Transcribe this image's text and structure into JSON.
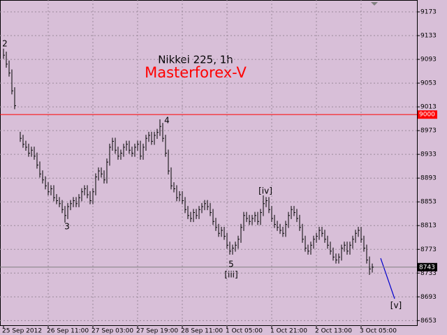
{
  "chart_data": {
    "type": "ohlc",
    "title": "Nikkei 225, 1h",
    "subtitle": "Masterforex-V",
    "categories": [
      "25 Sep 2012",
      null,
      null,
      null,
      null,
      null,
      null,
      null,
      null,
      null,
      null,
      null,
      null,
      null,
      null,
      null,
      "26 Sep 11:00",
      null,
      null,
      null,
      null,
      null,
      null,
      null,
      null,
      null,
      null,
      null,
      null,
      null,
      null,
      null,
      "27 Sep 03:00",
      null,
      null,
      null,
      null,
      null,
      null,
      null,
      null,
      null,
      null,
      null,
      null,
      null,
      null,
      null,
      "27 Sep 19:00",
      null,
      null,
      null,
      null,
      null,
      null,
      null,
      null,
      null,
      null,
      null,
      null,
      null,
      null,
      null,
      "28 Sep 11:00",
      null,
      null,
      null,
      null,
      null,
      null,
      null,
      null,
      null,
      null,
      null,
      null,
      null,
      null,
      null,
      "1 Oct 05:00",
      null,
      null,
      null,
      null,
      null,
      null,
      null,
      null,
      null,
      null,
      null,
      null,
      null,
      null,
      null,
      "1 Oct 21:00",
      null,
      null,
      null,
      null,
      null,
      null,
      null,
      null,
      null,
      null,
      null,
      null,
      null,
      null,
      null,
      "2 Oct 13:00",
      null,
      null,
      null,
      null,
      null,
      null,
      null,
      null,
      null,
      null,
      null,
      null,
      null,
      null,
      null,
      "3 Oct 05:00",
      null,
      null,
      null,
      null
    ],
    "high": [
      9111,
      9106,
      9091,
      9076,
      9046,
      null,
      8971,
      8966,
      8956,
      8951,
      8946,
      8946,
      8936,
      8921,
      8906,
      8896,
      8886,
      8881,
      8881,
      8866,
      8861,
      8856,
      8846,
      8851,
      8856,
      8861,
      8861,
      8866,
      8876,
      8881,
      8881,
      8871,
      8876,
      8901,
      8911,
      8911,
      8906,
      8926,
      8951,
      8961,
      8961,
      8946,
      8941,
      8951,
      8956,
      8956,
      8946,
      8951,
      8956,
      8956,
      8951,
      8966,
      8971,
      8971,
      8971,
      8976,
      8992,
      8986,
      8966,
      8941,
      8911,
      8886,
      8881,
      8871,
      8871,
      8861,
      8846,
      8836,
      8841,
      8841,
      8846,
      8851,
      8856,
      8856,
      8851,
      8841,
      8826,
      8816,
      8811,
      8811,
      8801,
      8786,
      8781,
      8786,
      8796,
      8816,
      8836,
      8836,
      8831,
      8831,
      8836,
      8836,
      8841,
      8864,
      8861,
      8861,
      8846,
      8831,
      8821,
      8816,
      8811,
      8821,
      8836,
      8846,
      8846,
      8841,
      8831,
      8816,
      8796,
      8781,
      8786,
      8796,
      8801,
      8811,
      8811,
      8806,
      8796,
      8786,
      8776,
      8766,
      8766,
      8781,
      8786,
      8786,
      8786,
      8796,
      8806,
      8811,
      8811,
      8796,
      8781,
      8761,
      8749
    ],
    "low": [
      9094,
      9079,
      9064,
      9034,
      9009,
      null,
      8954,
      8944,
      8939,
      8929,
      8929,
      8924,
      8909,
      8894,
      8884,
      8874,
      8864,
      8864,
      8854,
      8849,
      8844,
      8834,
      8818,
      8824,
      8839,
      8844,
      8844,
      8844,
      8854,
      8864,
      8859,
      8849,
      8849,
      8864,
      8889,
      8894,
      8884,
      8884,
      8914,
      8939,
      8934,
      8924,
      8924,
      8929,
      8939,
      8934,
      8929,
      8929,
      8939,
      8924,
      8924,
      8939,
      8954,
      8949,
      8949,
      8959,
      8964,
      8954,
      8929,
      8899,
      8874,
      8869,
      8854,
      8854,
      8849,
      8834,
      8824,
      8819,
      8819,
      8824,
      8824,
      8834,
      8839,
      8839,
      8829,
      8814,
      8804,
      8794,
      8794,
      8789,
      8774,
      8764,
      8764,
      8769,
      8774,
      8784,
      8804,
      8819,
      8814,
      8814,
      8819,
      8814,
      8814,
      8829,
      8844,
      8834,
      8819,
      8809,
      8804,
      8799,
      8794,
      8794,
      8809,
      8824,
      8829,
      8819,
      8804,
      8784,
      8769,
      8764,
      8764,
      8774,
      8784,
      8789,
      8794,
      8784,
      8774,
      8764,
      8754,
      8749,
      8749,
      8754,
      8769,
      8764,
      8764,
      8774,
      8784,
      8794,
      8784,
      8769,
      8749,
      8730,
      8734
    ],
    "close": [
      9100,
      9085,
      9070,
      9040,
      9015,
      null,
      8960,
      8950,
      8945,
      8935,
      8940,
      8930,
      8915,
      8900,
      8890,
      8880,
      8870,
      8875,
      8860,
      8855,
      8850,
      8840,
      8830,
      8845,
      8850,
      8855,
      8850,
      8860,
      8870,
      8875,
      8865,
      8855,
      8870,
      8895,
      8905,
      8900,
      8890,
      8920,
      8945,
      8955,
      8940,
      8930,
      8935,
      8945,
      8950,
      8940,
      8935,
      8945,
      8950,
      8930,
      8945,
      8960,
      8965,
      8955,
      8965,
      8970,
      8980,
      8960,
      8935,
      8905,
      8880,
      8875,
      8860,
      8865,
      8855,
      8840,
      8830,
      8825,
      8835,
      8830,
      8840,
      8845,
      8850,
      8845,
      8835,
      8820,
      8810,
      8800,
      8805,
      8795,
      8780,
      8770,
      8775,
      8780,
      8790,
      8810,
      8830,
      8825,
      8820,
      8825,
      8830,
      8820,
      8835,
      8850,
      8855,
      8840,
      8825,
      8815,
      8810,
      8805,
      8800,
      8815,
      8830,
      8840,
      8835,
      8825,
      8810,
      8790,
      8775,
      8770,
      8780,
      8790,
      8795,
      8805,
      8800,
      8790,
      8780,
      8770,
      8760,
      8755,
      8760,
      8775,
      8780,
      8770,
      8780,
      8790,
      8800,
      8805,
      8790,
      8775,
      8755,
      8740,
      8743
    ],
    "color": "#000000",
    "ylim": [
      9193,
      8644
    ],
    "yticks": [
      9173,
      9133,
      9093,
      9053,
      9013,
      8973,
      8933,
      8893,
      8853,
      8813,
      8773,
      8733,
      8693,
      8653
    ],
    "grid": true,
    "hlines": [
      {
        "value": 9000,
        "color": "#ff0000"
      },
      {
        "value": 8743,
        "color": "#808080"
      }
    ],
    "annotations": [
      "2",
      "3",
      "4",
      "5",
      "[iii]",
      "[iv]",
      "[v]"
    ]
  }
}
